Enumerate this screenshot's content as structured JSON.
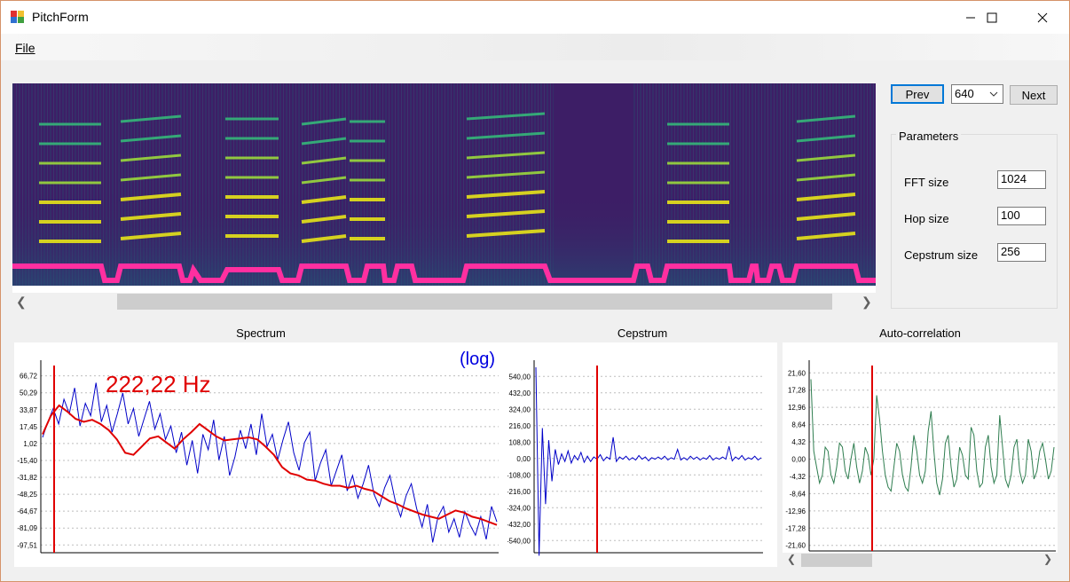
{
  "window": {
    "title": "PitchForm"
  },
  "menu": {
    "file": "File"
  },
  "nav": {
    "prev": "Prev",
    "frame_value": "640",
    "next": "Next"
  },
  "parameters": {
    "title": "Parameters",
    "fft_label": "FFT size",
    "fft_value": "1024",
    "hop_label": "Hop size",
    "hop_value": "100",
    "cep_label": "Cepstrum size",
    "cep_value": "256"
  },
  "icons": [
    "app-icon",
    "minimize-icon",
    "maximize-icon",
    "close-icon",
    "chevron-left-icon",
    "chevron-right-icon",
    "chevron-down-icon"
  ],
  "colors": {
    "marker": "#e00000",
    "spectrum": "#0000c8",
    "smooth": "#e00000",
    "autocorr": "#2e7d4f",
    "pitch_track": "#ff2fa0",
    "log_label": "#0000e0"
  },
  "chart_data": [
    {
      "type": "line",
      "title": "Spectrum",
      "annotations": [
        "222,22 Hz",
        "(log)"
      ],
      "y_ticks": [
        "66,72",
        "50,29",
        "33,87",
        "17,45",
        "1,02",
        "-15,40",
        "-31,82",
        "-48,25",
        "-64,67",
        "-81,09",
        "-97,51"
      ],
      "ylim": [
        -105,
        75
      ],
      "series": [
        {
          "values": [
            7,
            22,
            35,
            20,
            44,
            30,
            55,
            18,
            40,
            28,
            60,
            22,
            38,
            12,
            30,
            50,
            20,
            35,
            8,
            25,
            42,
            15,
            30,
            5,
            18,
            -8,
            12,
            -20,
            4,
            -28,
            10,
            -5,
            24,
            -15,
            8,
            -30,
            -12,
            14,
            -4,
            20,
            -10,
            30,
            -2,
            10,
            -15,
            5,
            22,
            -8,
            -25,
            2,
            12,
            -35,
            -18,
            -5,
            -40,
            -25,
            -10,
            -45,
            -30,
            -52,
            -38,
            -20,
            -48,
            -60,
            -42,
            -30,
            -55,
            -70,
            -50,
            -38,
            -62,
            -80,
            -58,
            -95,
            -70,
            -60,
            -85,
            -72,
            -90,
            -65,
            -78,
            -88,
            -70,
            -92,
            -60,
            -75
          ]
        },
        {
          "values": [
            10,
            28,
            38,
            32,
            25,
            22,
            24,
            20,
            14,
            5,
            -8,
            -10,
            -2,
            6,
            8,
            2,
            -4,
            5,
            12,
            20,
            14,
            8,
            4,
            5,
            6,
            7,
            5,
            -2,
            -10,
            -22,
            -28,
            -30,
            -34,
            -35,
            -38,
            -40,
            -40,
            -42,
            -40,
            -43,
            -45,
            -50,
            -55,
            -58,
            -62,
            -65,
            -68,
            -70,
            -72,
            -68,
            -64,
            -66,
            -70,
            -72,
            -75,
            -78
          ]
        }
      ]
    },
    {
      "type": "line",
      "title": "Cepstrum",
      "y_ticks": [
        "540,00",
        "432,00",
        "324,00",
        "216,00",
        "108,00",
        "0,00",
        "-108,00",
        "-216,00",
        "-324,00",
        "-432,00",
        "-540,00"
      ],
      "ylim": [
        -620,
        600
      ],
      "series": [
        {
          "values": [
            600,
            -640,
            200,
            -300,
            120,
            -150,
            60,
            -40,
            30,
            -20,
            50,
            -30,
            20,
            -10,
            40,
            -25,
            15,
            -20,
            10,
            -5,
            25,
            -15,
            10,
            -5,
            140,
            -20,
            10,
            -5,
            15,
            -10,
            5,
            -10,
            20,
            -5,
            10,
            -15,
            5,
            -5,
            10,
            -5,
            15,
            -10,
            5,
            -5,
            60,
            -10,
            5,
            -10,
            15,
            -5,
            10,
            -10,
            5,
            -5,
            20,
            -10,
            5,
            -5,
            10,
            -5,
            80,
            -15,
            10,
            -5,
            20,
            -10,
            5,
            -5,
            15,
            -10,
            5
          ]
        }
      ]
    },
    {
      "type": "line",
      "title": "Auto-correlation",
      "y_ticks": [
        "21,60",
        "17,28",
        "12,96",
        "8,64",
        "4,32",
        "0,00",
        "-4,32",
        "-8,64",
        "-12,96",
        "-17,28",
        "-21,60"
      ],
      "ylim": [
        -23,
        23
      ],
      "series": [
        {
          "values": [
            20,
            2,
            -2,
            -6,
            -4,
            3,
            2,
            -4,
            -6,
            -2,
            4,
            3,
            -3,
            -5,
            0,
            4,
            -2,
            -6,
            -3,
            3,
            1,
            -4,
            0,
            16,
            10,
            2,
            -4,
            -7,
            -8,
            -2,
            4,
            2,
            -4,
            -7,
            -8,
            -2,
            6,
            2,
            -4,
            -6,
            -3,
            7,
            12,
            2,
            -6,
            -9,
            -5,
            4,
            6,
            -2,
            -7,
            -5,
            3,
            1,
            -4,
            -5,
            8,
            6,
            -3,
            -7,
            -6,
            3,
            6,
            -2,
            -6,
            -4,
            11,
            3,
            -5,
            -7,
            -4,
            3,
            5,
            -3,
            -6,
            -4,
            5,
            2,
            -5,
            -3,
            2,
            4,
            0,
            -5,
            -3,
            3
          ]
        }
      ]
    }
  ]
}
